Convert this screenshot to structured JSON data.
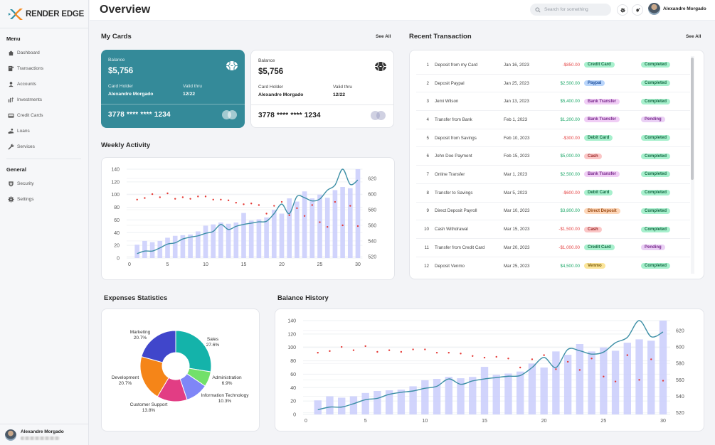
{
  "app": {
    "brand": "RENDER EDGE",
    "page_title": "Overview"
  },
  "sidebar": {
    "menu_heading": "Menu",
    "menu_items": [
      {
        "label": "Dashboard",
        "icon": "home-icon"
      },
      {
        "label": "Transactions",
        "icon": "receipt-icon"
      },
      {
        "label": "Accounts",
        "icon": "user-icon"
      },
      {
        "label": "Investments",
        "icon": "investment-icon"
      },
      {
        "label": "Credit Cards",
        "icon": "credit-card-icon"
      },
      {
        "label": "Loans",
        "icon": "loan-icon"
      },
      {
        "label": "Services",
        "icon": "wrench-icon"
      }
    ],
    "general_heading": "General",
    "general_items": [
      {
        "label": "Security",
        "icon": "shield-icon"
      },
      {
        "label": "Settings",
        "icon": "gear-icon"
      }
    ],
    "user": {
      "name": "Alexandre Morgado"
    }
  },
  "header": {
    "search_placeholder": "Search for something",
    "user_name": "Alexandre Morgado"
  },
  "my_cards": {
    "title": "My Cards",
    "see_all": "See All",
    "cards": [
      {
        "balance_label": "Balance",
        "balance": "$5,756",
        "holder_label": "Card Holder",
        "holder": "Alexandre Morgado",
        "valid_label": "Valid thru",
        "valid": "12/22",
        "number": "3778 **** **** 1234",
        "theme": "teal"
      },
      {
        "balance_label": "Balance",
        "balance": "$5,756",
        "holder_label": "Card Holder",
        "holder": "Alexandre Morgado",
        "valid_label": "Valid thru",
        "valid": "12/22",
        "number": "3778 **** **** 1234",
        "theme": "white"
      }
    ]
  },
  "recent_transactions": {
    "title": "Recent Transaction",
    "see_all": "See All",
    "rows": [
      {
        "idx": "1",
        "desc": "Deposit from my Card",
        "date": "Jan 16, 2023",
        "amount": "-$850.00",
        "negative": true,
        "method": "Credit Card",
        "status": "Completed"
      },
      {
        "idx": "2",
        "desc": "Deposit Paypal",
        "date": "Jan 25, 2023",
        "amount": "$2,500.00",
        "negative": false,
        "method": "Paypal",
        "status": "Completed"
      },
      {
        "idx": "3",
        "desc": "Jemi Wilson",
        "date": "Jan 13, 2023",
        "amount": "$5,400.00",
        "negative": false,
        "method": "Bank Transfer",
        "status": "Completed"
      },
      {
        "idx": "4",
        "desc": "Transfer from Bank",
        "date": "Feb 1, 2023",
        "amount": "$1,200.00",
        "negative": false,
        "method": "Bank Transfer",
        "status": "Pending"
      },
      {
        "idx": "5",
        "desc": "Deposit from Savings",
        "date": "Feb 10, 2023",
        "amount": "-$300.00",
        "negative": true,
        "method": "Debit Card",
        "status": "Completed"
      },
      {
        "idx": "6",
        "desc": "John Doe Payment",
        "date": "Feb 15, 2023",
        "amount": "$5,000.00",
        "negative": false,
        "method": "Cash",
        "status": "Completed"
      },
      {
        "idx": "7",
        "desc": "Online Transfer",
        "date": "Mar 1, 2023",
        "amount": "$2,500.00",
        "negative": false,
        "method": "Bank Transfer",
        "status": "Completed"
      },
      {
        "idx": "8",
        "desc": "Transfer to Savings",
        "date": "Mar 5, 2023",
        "amount": "-$600.00",
        "negative": true,
        "method": "Debit Card",
        "status": "Completed"
      },
      {
        "idx": "9",
        "desc": "Direct Deposit Payroll",
        "date": "Mar 10, 2023",
        "amount": "$3,800.00",
        "negative": false,
        "method": "Direct Deposit",
        "status": "Completed"
      },
      {
        "idx": "10",
        "desc": "Cash Withdrawal",
        "date": "Mar 15, 2023",
        "amount": "-$1,500.00",
        "negative": true,
        "method": "Cash",
        "status": "Completed"
      },
      {
        "idx": "11",
        "desc": "Transfer from Credit Card",
        "date": "Mar 20, 2023",
        "amount": "-$1,000.00",
        "negative": true,
        "method": "Credit Card",
        "status": "Pending"
      },
      {
        "idx": "12",
        "desc": "Deposit Venmo",
        "date": "Mar 25, 2023",
        "amount": "$4,500.00",
        "negative": false,
        "method": "Venmo",
        "status": "Completed"
      }
    ],
    "method_colors": {
      "Credit Card": {
        "bg": "#a7f0cd",
        "fg": "#176b45"
      },
      "Paypal": {
        "bg": "#b9d5fb",
        "fg": "#1d4f9c"
      },
      "Bank Transfer": {
        "bg": "#f0cdf5",
        "fg": "#7b2c8e"
      },
      "Debit Card": {
        "bg": "#a7f0cd",
        "fg": "#176b45"
      },
      "Cash": {
        "bg": "#fbc6c6",
        "fg": "#9c2a2a"
      },
      "Direct Deposit": {
        "bg": "#fdd6b8",
        "fg": "#9c4a12"
      },
      "Venmo": {
        "bg": "#fbe59a",
        "fg": "#7a5a05"
      }
    },
    "status_colors": {
      "Completed": {
        "bg": "#a7f0cd",
        "fg": "#176b45"
      },
      "Pending": {
        "bg": "#ead0f5",
        "fg": "#7b2c8e"
      }
    },
    "amount_colors": {
      "positive": "#1fa86a",
      "negative": "#e54848"
    }
  },
  "weekly_activity": {
    "title": "Weekly Activity"
  },
  "expenses": {
    "title": "Expenses Statistics"
  },
  "balance_history": {
    "title": "Balance History"
  },
  "chart_data": [
    {
      "id": "weekly-activity",
      "type": "bar",
      "title": "Weekly Activity",
      "x": [
        1,
        2,
        3,
        4,
        5,
        6,
        7,
        8,
        9,
        10,
        11,
        12,
        13,
        14,
        15,
        16,
        17,
        18,
        19,
        20,
        21,
        22,
        23,
        24,
        25,
        26,
        27,
        28,
        29,
        30
      ],
      "xlim": [
        0,
        30
      ],
      "xticks": [
        0,
        5,
        10,
        15,
        20,
        25,
        30
      ],
      "ylim_left": [
        0,
        140
      ],
      "yticks_left": [
        0,
        20,
        40,
        60,
        80,
        100,
        120,
        140
      ],
      "ylim_right": [
        518,
        632
      ],
      "yticks_right": [
        520,
        540,
        560,
        580,
        600,
        620
      ],
      "grid": true,
      "series": [
        {
          "name": "bars",
          "type": "bar",
          "axis": "left",
          "color": "#c9ccfb",
          "values": [
            21,
            27,
            25,
            27,
            32,
            35,
            36,
            37,
            42,
            51,
            53,
            56,
            54,
            56,
            71,
            59,
            61,
            64,
            76,
            70,
            94,
            89,
            105,
            94,
            100,
            95,
            107,
            112,
            110,
            140
          ]
        },
        {
          "name": "line",
          "type": "line",
          "axis": "left",
          "color": "#3d8fa6",
          "values": [
            7,
            11,
            11,
            16,
            22,
            24,
            30,
            33,
            35,
            39,
            42,
            53,
            45,
            50,
            53,
            55,
            57,
            58,
            70,
            85,
            70,
            97,
            95,
            90,
            93,
            107,
            115,
            140,
            116,
            123
          ]
        },
        {
          "name": "points",
          "type": "scatter",
          "axis": "right",
          "color": "#e53935",
          "values": [
            593,
            595,
            600,
            596,
            601,
            594,
            596,
            594,
            597,
            597,
            593,
            593,
            592,
            589,
            587,
            588,
            586,
            575,
            585,
            590,
            573,
            582,
            572,
            586,
            564,
            558,
            590,
            560,
            585,
            559
          ]
        }
      ]
    },
    {
      "id": "expenses-statistics",
      "type": "pie",
      "title": "Expenses Statistics",
      "donut": true,
      "slices": [
        {
          "label": "Sales",
          "value": 27.6,
          "pct_label": "27.6%",
          "color": "#14b3aa"
        },
        {
          "label": "Administration",
          "value": 6.9,
          "pct_label": "6.9%",
          "color": "#72e06a"
        },
        {
          "label": "Information Technology",
          "value": 10.3,
          "pct_label": "10.3%",
          "color": "#7f86f7"
        },
        {
          "label": "Customer Support",
          "value": 13.8,
          "pct_label": "13.8%",
          "color": "#e23d84"
        },
        {
          "label": "Development",
          "value": 20.7,
          "pct_label": "20.7%",
          "color": "#f58518"
        },
        {
          "label": "Marketing",
          "value": 20.7,
          "pct_label": "20.7%",
          "color": "#4046cb"
        }
      ]
    },
    {
      "id": "balance-history",
      "type": "bar",
      "title": "Balance History",
      "x": [
        1,
        2,
        3,
        4,
        5,
        6,
        7,
        8,
        9,
        10,
        11,
        12,
        13,
        14,
        15,
        16,
        17,
        18,
        19,
        20,
        21,
        22,
        23,
        24,
        25,
        26,
        27,
        28,
        29,
        30
      ],
      "xlim": [
        0,
        30
      ],
      "xticks": [
        0,
        5,
        10,
        15,
        20,
        25,
        30
      ],
      "ylim_left": [
        0,
        140
      ],
      "yticks_left": [
        0,
        20,
        40,
        60,
        80,
        100,
        120,
        140
      ],
      "ylim_right": [
        518,
        632
      ],
      "yticks_right": [
        520,
        540,
        560,
        580,
        600,
        620
      ],
      "grid": true,
      "series": [
        {
          "name": "bars",
          "type": "bar",
          "axis": "left",
          "color": "#c9ccfb",
          "values": [
            21,
            27,
            25,
            27,
            32,
            35,
            36,
            37,
            42,
            51,
            53,
            56,
            54,
            56,
            71,
            59,
            61,
            64,
            76,
            70,
            94,
            89,
            105,
            94,
            100,
            95,
            107,
            112,
            110,
            140
          ]
        },
        {
          "name": "line",
          "type": "line",
          "axis": "left",
          "color": "#3d8fa6",
          "values": [
            7,
            11,
            11,
            16,
            22,
            24,
            30,
            33,
            35,
            39,
            42,
            53,
            45,
            50,
            53,
            55,
            57,
            58,
            70,
            85,
            70,
            97,
            95,
            90,
            93,
            107,
            115,
            140,
            116,
            123
          ]
        },
        {
          "name": "points",
          "type": "scatter",
          "axis": "right",
          "color": "#e53935",
          "values": [
            593,
            595,
            600,
            596,
            601,
            594,
            596,
            594,
            597,
            597,
            593,
            593,
            592,
            589,
            587,
            588,
            586,
            575,
            585,
            590,
            573,
            582,
            572,
            586,
            564,
            558,
            590,
            560,
            585,
            559
          ]
        }
      ]
    }
  ]
}
